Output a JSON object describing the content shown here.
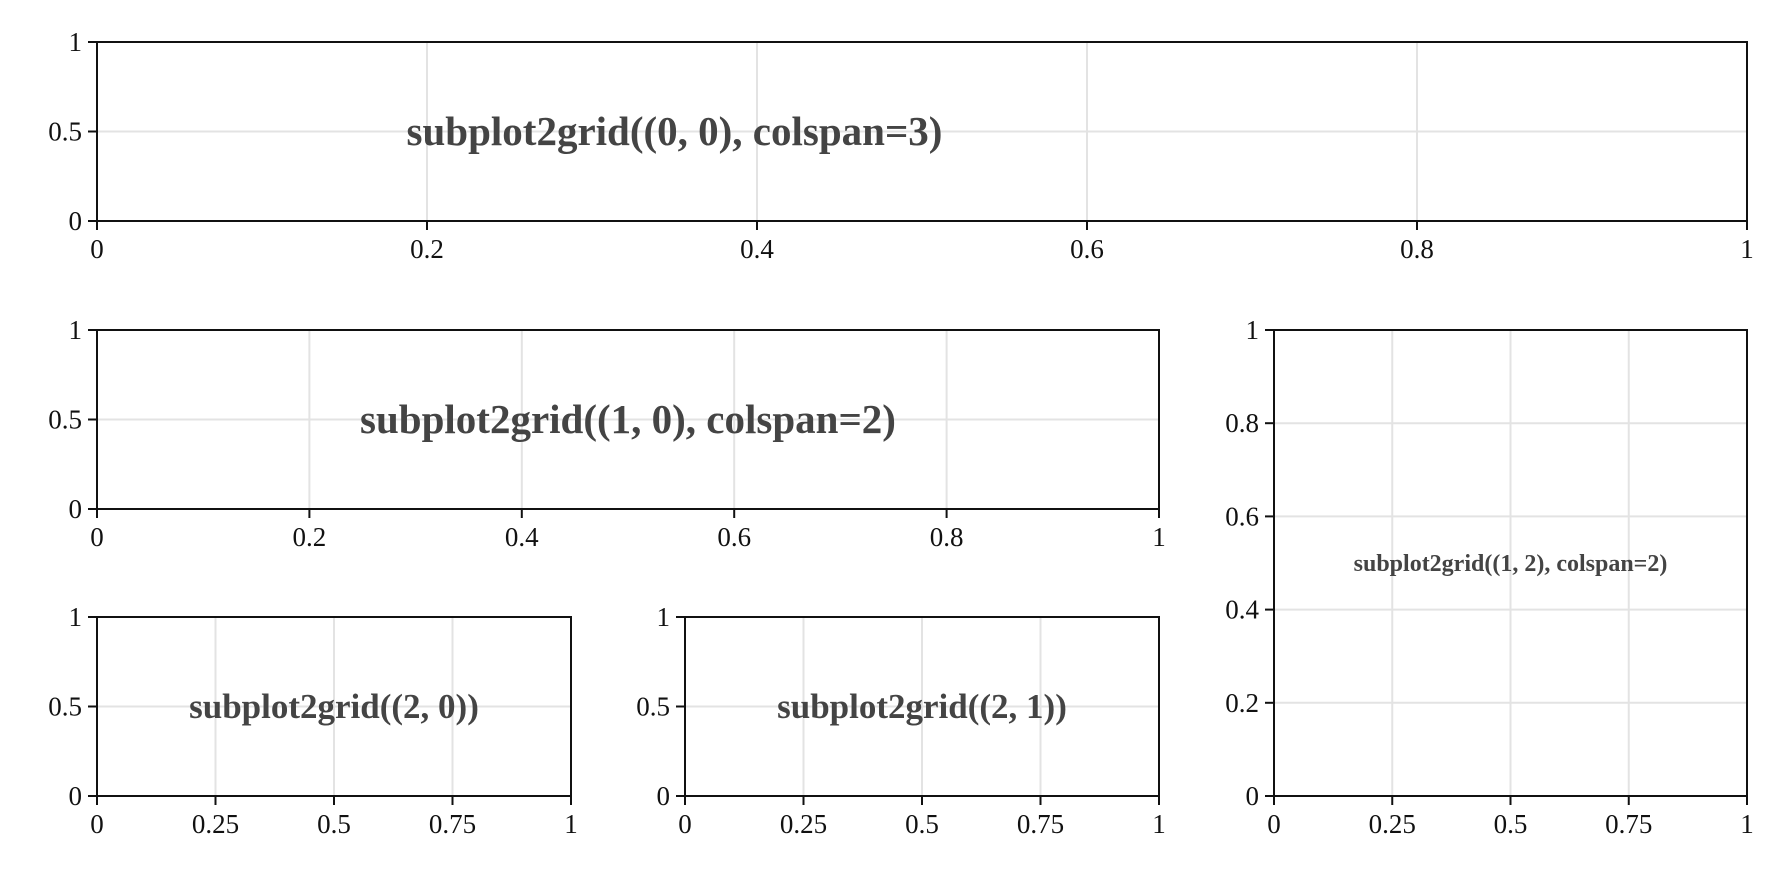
{
  "chart_data": [
    {
      "type": "empty",
      "annotation": "subplot2grid((0, 0), colspan=3)",
      "xlim": [
        0,
        1
      ],
      "ylim": [
        0,
        1
      ],
      "xticks": [
        0,
        0.2,
        0.4,
        0.6,
        0.8,
        1
      ],
      "xtick_labels": [
        "0",
        "0.2",
        "0.4",
        "0.6",
        "0.8",
        "1"
      ],
      "yticks": [
        0,
        0.5,
        1
      ],
      "ytick_labels": [
        "0",
        "0.5",
        "1"
      ],
      "grid": true
    },
    {
      "type": "empty",
      "annotation": "subplot2grid((1, 0), colspan=2)",
      "xlim": [
        0,
        1
      ],
      "ylim": [
        0,
        1
      ],
      "xticks": [
        0,
        0.2,
        0.4,
        0.6,
        0.8,
        1
      ],
      "xtick_labels": [
        "0",
        "0.2",
        "0.4",
        "0.6",
        "0.8",
        "1"
      ],
      "yticks": [
        0,
        0.5,
        1
      ],
      "ytick_labels": [
        "0",
        "0.5",
        "1"
      ],
      "grid": true
    },
    {
      "type": "empty",
      "annotation": "subplot2grid((1, 2), colspan=2)",
      "xlim": [
        0,
        1
      ],
      "ylim": [
        0,
        1
      ],
      "xticks": [
        0,
        0.25,
        0.5,
        0.75,
        1
      ],
      "xtick_labels": [
        "0",
        "0.25",
        "0.5",
        "0.75",
        "1"
      ],
      "yticks": [
        0,
        0.2,
        0.4,
        0.6,
        0.8,
        1
      ],
      "ytick_labels": [
        "0",
        "0.2",
        "0.4",
        "0.6",
        "0.8",
        "1"
      ],
      "grid": true
    },
    {
      "type": "empty",
      "annotation": "subplot2grid((2, 0))",
      "xlim": [
        0,
        1
      ],
      "ylim": [
        0,
        1
      ],
      "xticks": [
        0,
        0.25,
        0.5,
        0.75,
        1
      ],
      "xtick_labels": [
        "0",
        "0.25",
        "0.5",
        "0.75",
        "1"
      ],
      "yticks": [
        0,
        0.5,
        1
      ],
      "ytick_labels": [
        "0",
        "0.5",
        "1"
      ],
      "grid": true
    },
    {
      "type": "empty",
      "annotation": "subplot2grid((2, 1))",
      "xlim": [
        0,
        1
      ],
      "ylim": [
        0,
        1
      ],
      "xticks": [
        0,
        0.25,
        0.5,
        0.75,
        1
      ],
      "xtick_labels": [
        "0",
        "0.25",
        "0.5",
        "0.75",
        "1"
      ],
      "yticks": [
        0,
        0.5,
        1
      ],
      "ytick_labels": [
        "0",
        "0.5",
        "1"
      ],
      "grid": true
    }
  ],
  "colors": {
    "axes": "#111111",
    "grid": "#e3e3e3",
    "annotation_text": "#444444",
    "background": "#ffffff"
  }
}
